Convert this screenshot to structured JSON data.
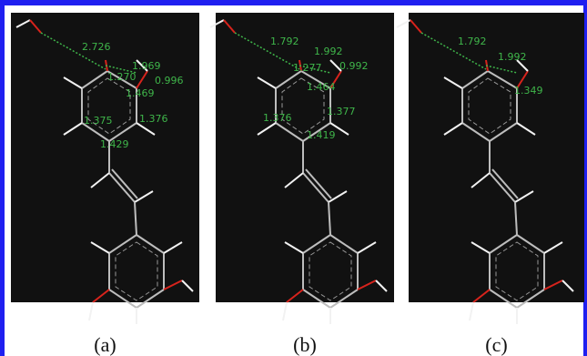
{
  "panels": [
    {
      "label": "(a)",
      "annotations": [
        "2.726",
        "1.969",
        "1.270",
        "0.996",
        "1.469",
        "1.375",
        "1.376",
        "1.429"
      ]
    },
    {
      "label": "(b)",
      "annotations": [
        "1.792",
        "1.992",
        "1.277",
        "0.992",
        "1.464",
        "1.376",
        "1.377",
        "1.419"
      ]
    },
    {
      "label": "(c)",
      "annotations": [
        "1.792",
        "1.992",
        "1.349"
      ]
    }
  ]
}
